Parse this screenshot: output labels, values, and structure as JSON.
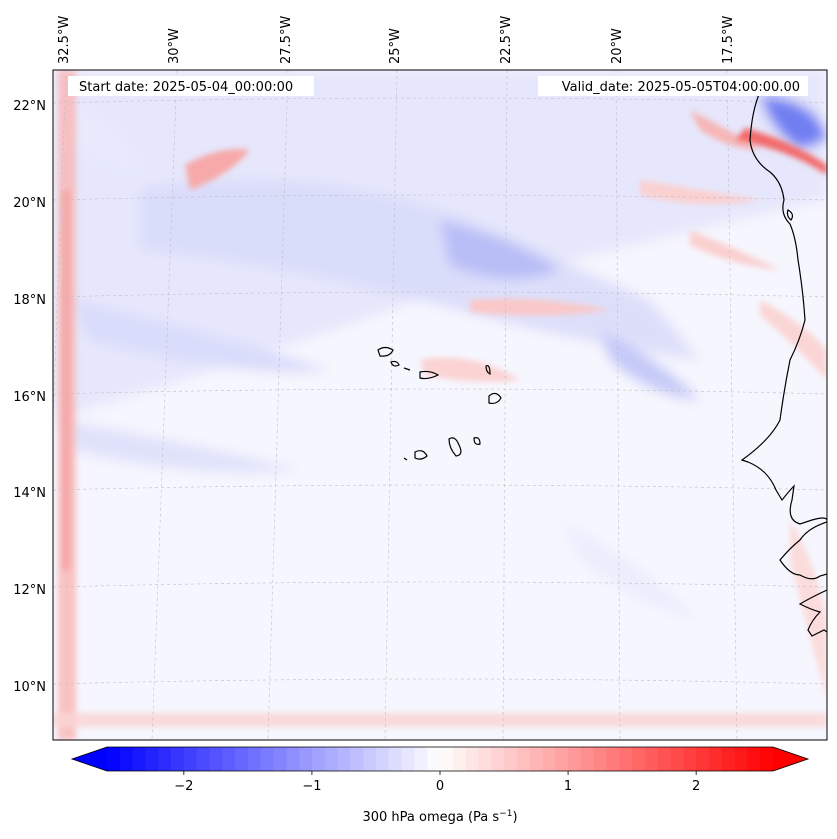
{
  "header": {
    "start_date": "Start date: 2025-05-04_00:00:00",
    "valid_date": "Valid_date: 2025-05-05T04:00:00.00"
  },
  "map": {
    "lat_labels": [
      "22°N",
      "20°N",
      "18°N",
      "16°N",
      "14°N",
      "12°N",
      "10°N"
    ],
    "lon_labels": [
      "32.5°W",
      "30°W",
      "27.5°W",
      "25°W",
      "22.5°W",
      "20°W",
      "17.5°W"
    ]
  },
  "colorbar": {
    "ticks": [
      "−2",
      "−1",
      "0",
      "1",
      "2"
    ],
    "tick_values": [
      -2,
      -1,
      0,
      1,
      2
    ],
    "range": [
      -2.6,
      2.6
    ],
    "label_main": "300 hPa omega (Pa s",
    "label_sup": "−1",
    "label_end": ")",
    "cmap": [
      "#0000ff",
      "#ffffff",
      "#ff0000"
    ]
  }
}
